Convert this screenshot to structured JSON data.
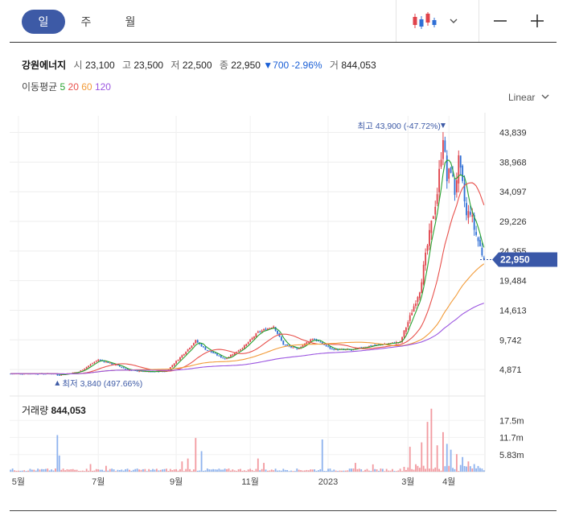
{
  "tabs": [
    {
      "label": "일",
      "active": true
    },
    {
      "label": "주",
      "active": false
    },
    {
      "label": "월",
      "active": false
    }
  ],
  "chart_type_icon": "candlestick-icon",
  "header": {
    "name": "강원에너지",
    "open_label": "시",
    "open": "23,100",
    "high_label": "고",
    "high": "23,500",
    "low_label": "저",
    "low": "22,500",
    "close_label": "종",
    "close": "22,950",
    "change": "▼700",
    "change_pct": "-2.96%",
    "volume_label": "거",
    "volume": "844,053"
  },
  "ma_legend": {
    "label": "이동평균",
    "periods": [
      {
        "label": "5",
        "color": "#27a22f"
      },
      {
        "label": "20",
        "color": "#e8504b"
      },
      {
        "label": "60",
        "color": "#f29b39"
      },
      {
        "label": "120",
        "color": "#9b55e0"
      }
    ]
  },
  "scale_label": "Linear",
  "colors": {
    "up": "#e0434b",
    "down": "#2f6fd6",
    "accent": "#3d5aa6",
    "price_tag": "#3a58a8"
  },
  "chart_data": {
    "type": "candlestick",
    "y_ticks": [
      "43,839",
      "38,968",
      "34,097",
      "29,226",
      "24,355",
      "19,484",
      "14,613",
      "9,742",
      "4,871"
    ],
    "y_tick_values": [
      43839,
      38968,
      34097,
      29226,
      24355,
      19484,
      14613,
      9742,
      4871
    ],
    "ylim": [
      2900,
      45500
    ],
    "x_ticks": [
      "5월",
      "7월",
      "9월",
      "11월",
      "2023",
      "3월",
      "4월"
    ],
    "x_tick_index": [
      4,
      45,
      85,
      123,
      163,
      204,
      225
    ],
    "n_days": 244,
    "current_price": "22,950",
    "current_value": 22950,
    "high_note": {
      "label": "최고",
      "value": "43,900",
      "pct": "(-47.72%)",
      "index": 222,
      "price": 43900
    },
    "low_note": {
      "label": "최저",
      "value": "3,840",
      "pct": "(497.66%)",
      "index": 24,
      "price": 3840
    },
    "price_path": {
      "idx": [
        0,
        23,
        24,
        35,
        45,
        55,
        60,
        70,
        80,
        88,
        95,
        100,
        110,
        120,
        127,
        135,
        140,
        147,
        155,
        165,
        175,
        185,
        195,
        200,
        205,
        210,
        215,
        219,
        222,
        224,
        226,
        228,
        230,
        232,
        234,
        236,
        238,
        241,
        243
      ],
      "val": [
        4200,
        4200,
        3950,
        4500,
        6500,
        5500,
        4800,
        4500,
        4600,
        7200,
        9600,
        8200,
        6600,
        8700,
        11000,
        12000,
        9000,
        8200,
        10000,
        8200,
        8100,
        8800,
        9200,
        9400,
        13500,
        18000,
        27000,
        34000,
        43500,
        36000,
        38000,
        34000,
        39000,
        35000,
        30000,
        31000,
        28000,
        25000,
        22950
      ]
    },
    "ma_periods": [
      5,
      20,
      60,
      120
    ],
    "volume": {
      "label": "거래량",
      "value": "844,053",
      "ticks": [
        "17.5m",
        "11.7m",
        "5.83m"
      ],
      "tick_values": [
        17500000,
        11700000,
        5830000
      ],
      "max": 25000000,
      "spikes": [
        {
          "i": 24,
          "v": 12500000
        },
        {
          "i": 25,
          "v": 5500000
        },
        {
          "i": 41,
          "v": 2600000
        },
        {
          "i": 49,
          "v": 2000000
        },
        {
          "i": 88,
          "v": 3500000
        },
        {
          "i": 91,
          "v": 4500000
        },
        {
          "i": 95,
          "v": 11500000
        },
        {
          "i": 98,
          "v": 7000000
        },
        {
          "i": 127,
          "v": 4500000
        },
        {
          "i": 130,
          "v": 3000000
        },
        {
          "i": 160,
          "v": 11000000
        },
        {
          "i": 177,
          "v": 3000000
        },
        {
          "i": 186,
          "v": 2500000
        },
        {
          "i": 205,
          "v": 8500000
        },
        {
          "i": 211,
          "v": 10000000
        },
        {
          "i": 214,
          "v": 17000000
        },
        {
          "i": 216,
          "v": 21500000
        },
        {
          "i": 219,
          "v": 9000000
        },
        {
          "i": 222,
          "v": 13500000
        },
        {
          "i": 224,
          "v": 9500000
        },
        {
          "i": 226,
          "v": 7500000
        },
        {
          "i": 229,
          "v": 6000000
        },
        {
          "i": 232,
          "v": 5000000
        },
        {
          "i": 235,
          "v": 3500000
        }
      ]
    }
  }
}
